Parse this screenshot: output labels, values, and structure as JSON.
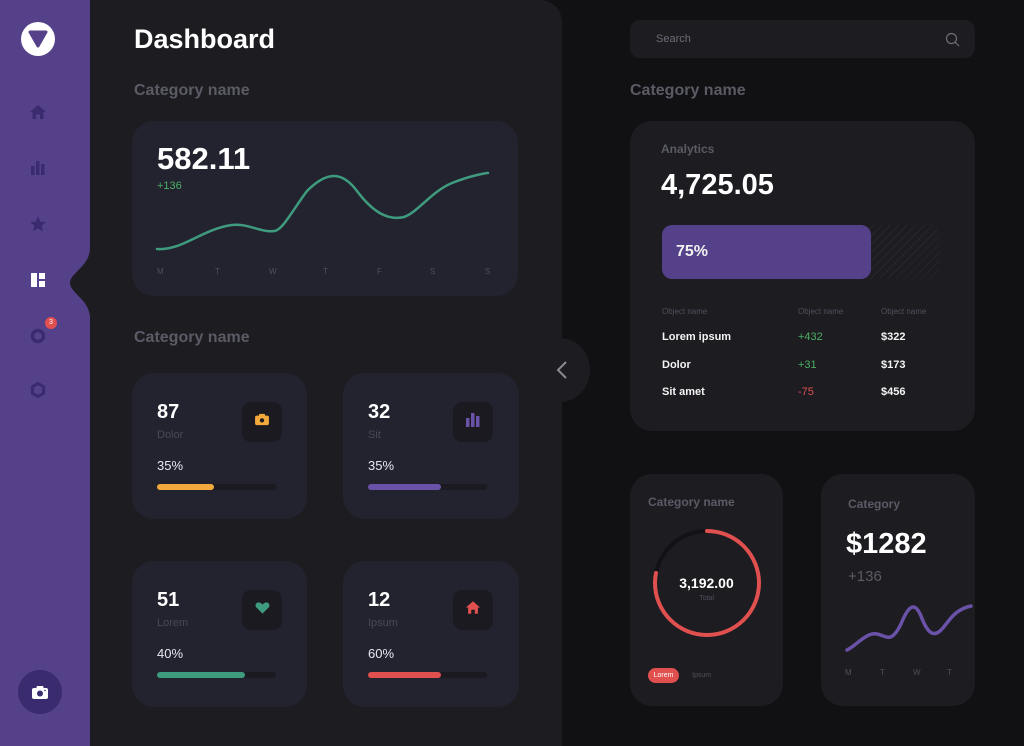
{
  "sidebar": {
    "logo": "logo-triangle",
    "items": [
      {
        "name": "home",
        "icon": "home-icon",
        "active": false
      },
      {
        "name": "charts",
        "icon": "bar-chart-icon",
        "active": false
      },
      {
        "name": "favorites",
        "icon": "star-icon",
        "active": false
      },
      {
        "name": "dashboard",
        "icon": "dashboard-icon",
        "active": true
      },
      {
        "name": "notifications",
        "icon": "ring-icon",
        "active": false,
        "badge": "3"
      },
      {
        "name": "settings",
        "icon": "hexagon-icon",
        "active": false
      }
    ],
    "bottom_button_icon": "camera-icon"
  },
  "main": {
    "title": "Dashboard",
    "section1_label": "Category name",
    "section2_label": "Category name",
    "chart_card": {
      "value": "582.11",
      "delta": "+136",
      "days": [
        "M",
        "T",
        "W",
        "T",
        "F",
        "S",
        "S"
      ]
    },
    "stats": [
      {
        "value": "87",
        "label": "Dolor",
        "percent_text": "35%",
        "fill": 0.48,
        "color": "#f2a93b",
        "icon": "camera-icon"
      },
      {
        "value": "32",
        "label": "Sit",
        "percent_text": "35%",
        "fill": 0.61,
        "color": "#6a52a8",
        "icon": "bar-chart-icon"
      },
      {
        "value": "51",
        "label": "Lorem",
        "percent_text": "40%",
        "fill": 0.74,
        "color": "#3f9b7e",
        "icon": "heart-icon"
      },
      {
        "value": "12",
        "label": "Ipsum",
        "percent_text": "60%",
        "fill": 0.61,
        "color": "#e0504f",
        "icon": "home-icon"
      }
    ]
  },
  "right": {
    "search_placeholder": "Search",
    "section_label": "Category name",
    "analytics": {
      "label": "Analytics",
      "value": "4,725.05",
      "progress_text": "75%",
      "progress": 0.75,
      "headers": [
        "Object name",
        "Object name",
        "Object name"
      ],
      "rows": [
        {
          "name": "Lorem ipsum",
          "delta": "+432",
          "positive": true,
          "amount": "$322"
        },
        {
          "name": "Dolor",
          "delta": "+31",
          "positive": true,
          "amount": "$173"
        },
        {
          "name": "Sit amet",
          "delta": "-75",
          "positive": false,
          "amount": "$456"
        }
      ]
    },
    "donut_card": {
      "title": "Category name",
      "value": "3,192.00",
      "sub": "Total",
      "progress": 0.78,
      "tabs": [
        "Lorem",
        "Ipsum"
      ]
    },
    "category_card": {
      "title": "Category",
      "value": "$1282",
      "delta": "+136",
      "days": [
        "M",
        "T",
        "W",
        "T"
      ]
    }
  },
  "colors": {
    "accent": "#54418a",
    "green": "#3f9b7e",
    "red": "#e0504f",
    "orange": "#f2a93b",
    "positive": "#4caf63",
    "negative": "#e0504f"
  }
}
